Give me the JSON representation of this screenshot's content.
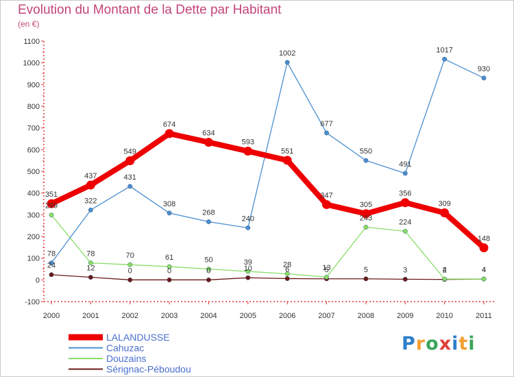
{
  "chart_data": {
    "type": "line",
    "title": "Evolution du Montant de la Dette par Habitant",
    "subtitle": "(en €)",
    "x": [
      "2000",
      "2001",
      "2002",
      "2003",
      "2004",
      "2005",
      "2006",
      "2007",
      "2008",
      "2009",
      "2010",
      "2011"
    ],
    "ylim": [
      -100,
      1100
    ],
    "yticks": [
      -100,
      0,
      100,
      200,
      300,
      400,
      500,
      600,
      700,
      800,
      900,
      1000,
      1100
    ],
    "grid": false,
    "legend_position": "bottom-left",
    "series": [
      {
        "name": "LALANDUSSE",
        "color": "#ee0000",
        "values": [
          351,
          437,
          549,
          674,
          634,
          593,
          551,
          347,
          305,
          356,
          309,
          148
        ]
      },
      {
        "name": "Cahuzac",
        "color": "#4a8fd0",
        "values": [
          78,
          322,
          431,
          308,
          268,
          240,
          1002,
          677,
          550,
          491,
          1017,
          930
        ]
      },
      {
        "name": "Douzains",
        "color": "#88dd66",
        "values": [
          299,
          78,
          70,
          61,
          50,
          39,
          28,
          13,
          243,
          224,
          4,
          4
        ]
      },
      {
        "name": "Sérignac-Péboudou",
        "color": "#6b1a1a",
        "values": [
          24,
          12,
          0,
          0,
          0,
          10,
          6,
          5,
          5,
          3,
          2,
          4
        ]
      }
    ]
  },
  "logo": {
    "text": "Proxiti"
  }
}
